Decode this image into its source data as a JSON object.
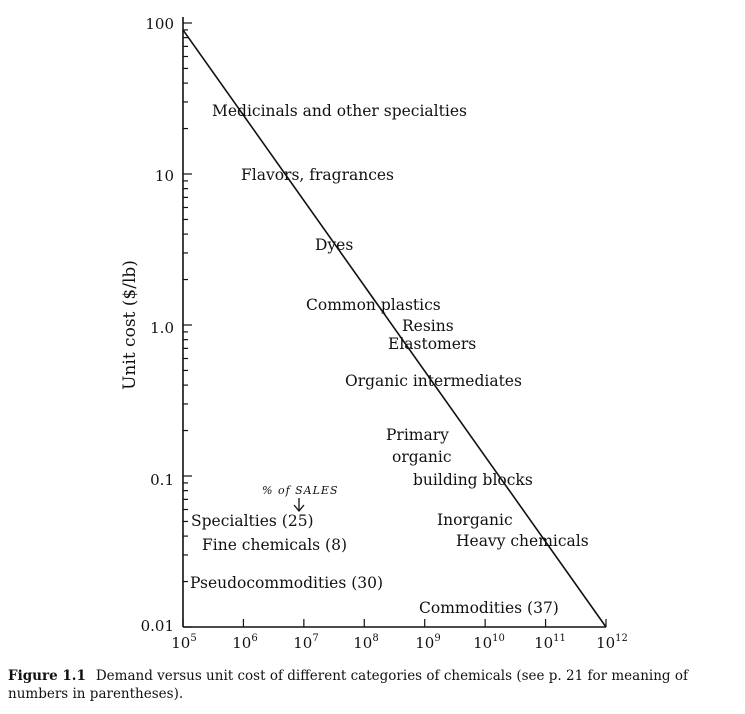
{
  "chart_data": {
    "type": "line",
    "title": "",
    "xlabel": "",
    "ylabel": "Unit cost ($/lb)",
    "x_scale": "log",
    "y_scale": "log",
    "xlim": [
      100000,
      1000000000000
    ],
    "ylim": [
      0.01,
      100
    ],
    "grid": false,
    "x_tick_labels": [
      {
        "base": "10",
        "exp": "5"
      },
      {
        "base": "10",
        "exp": "6"
      },
      {
        "base": "10",
        "exp": "7"
      },
      {
        "base": "10",
        "exp": "8"
      },
      {
        "base": "10",
        "exp": "9"
      },
      {
        "base": "10",
        "exp": "10"
      },
      {
        "base": "10",
        "exp": "11"
      },
      {
        "base": "10",
        "exp": "12"
      }
    ],
    "y_tick_labels": [
      "100",
      "10",
      "1.0",
      "0.1",
      "0.01"
    ],
    "series": [
      {
        "x": [
          100000,
          1000000000000
        ],
        "y": [
          90,
          0.01
        ]
      }
    ],
    "line_labels": [
      "Medicinals and other specialties",
      "Flavors, fragrances",
      "Dyes",
      "Common plastics",
      "Resins",
      "Elastomers",
      "Organic intermediates",
      "Primary",
      "organic",
      "building blocks",
      "Inorganic",
      "Heavy chemicals",
      "Commodities (37)"
    ],
    "legend_labels": [
      "Specialties (25)",
      "Fine chemicals (8)",
      "Pseudocommodities (30)"
    ],
    "handwritten_note": "% of SALES"
  },
  "caption": {
    "figure_label": "Figure 1.1",
    "text": "Demand versus unit cost of different categories of chemicals (see p. 21 for meaning of numbers in parentheses)."
  }
}
